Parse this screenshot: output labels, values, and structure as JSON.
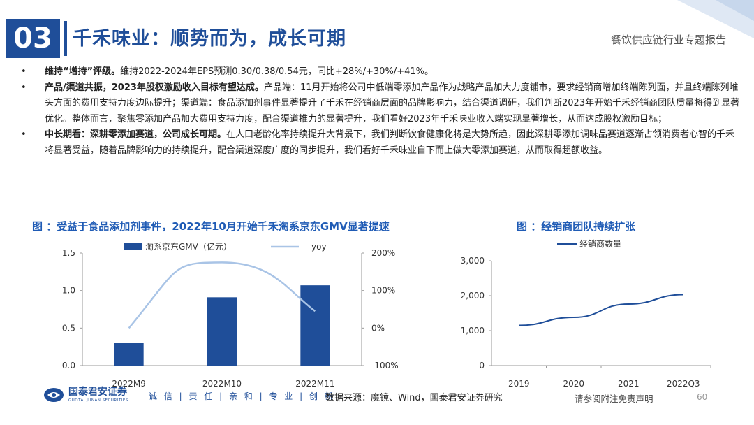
{
  "header": {
    "section_number": "03",
    "title": "千禾味业：顺势而为，成长可期",
    "report_tag": "餐饮供应链行业专题报告"
  },
  "bullets": [
    {
      "marker": "•",
      "bold": "维持“增持”评级。",
      "text": "维持2022-2024年EPS预测0.30/0.38/0.54元，同比+28%/+30%/+41%。"
    },
    {
      "marker": "•",
      "bold": "产品/渠道共振，2023年股权激励收入目标有望达成。",
      "text": "产品端：11月开始将公司中低端零添加产品作为战略产品加大力度铺市，要求经销商增加终端陈列面，并且终端陈列堆头方面的费用支持力度边际提升；渠道端：食品添加剂事件显著提升了千禾在经销商层面的品牌影响力，结合渠道调研，我们判断2023年开始千禾经销商团队质量将得到显著优化。整体而言，聚焦零添加产品加大费用支持力度，配合渠道推力的显著提升，我们看好2023年千禾味业收入端实现显著增长，从而达成股权激励目标；"
    },
    {
      "marker": "•",
      "bold": "中长期看：深耕零添加赛道，公司成长可期。",
      "text": "在人口老龄化率持续提升大背景下，我们判断饮食健康化将是大势所趋，因此深耕零添加调味品赛道逐渐占领消费者心智的千禾将显著受益，随着品牌影响力的持续提升，配合渠道深度广度的同步提升，我们看好千禾味业自下而上做大零添加赛道，从而取得超额收益。"
    }
  ],
  "colors": {
    "brand": "#1f4e99",
    "bar": "#1f4e99",
    "yoy_line": "#a9c4e6",
    "dealer_line": "#1f4e99",
    "chart_title": "#1f5bb5"
  },
  "chart_data": [
    {
      "type": "bar",
      "title": "图 ：受益于食品添加剂事件，2022年10月开始千禾淘系京东GMV显著提速",
      "categories": [
        "2022M9",
        "2022M10",
        "2022M11"
      ],
      "series": [
        {
          "name": "淘系京东GMV（亿元）",
          "type": "bar",
          "axis": "left",
          "values": [
            0.3,
            0.91,
            1.07
          ]
        },
        {
          "name": "yoy",
          "type": "line",
          "axis": "right",
          "values": [
            0,
            175,
            45
          ]
        }
      ],
      "y_left": {
        "range": [
          0,
          1.5
        ],
        "ticks": [
          "0.0",
          "0.5",
          "1.0",
          "1.5"
        ],
        "tick_values": [
          0,
          0.5,
          1.0,
          1.5
        ]
      },
      "y_right": {
        "range": [
          -100,
          200
        ],
        "ticks": [
          "-100%",
          "0%",
          "100%",
          "200%"
        ],
        "tick_values": [
          -100,
          0,
          100,
          200
        ]
      },
      "legend": "top"
    },
    {
      "type": "line",
      "title": "图 ：经销商团队持续扩张",
      "categories": [
        "2019",
        "2020",
        "2021",
        "2022Q3"
      ],
      "series": [
        {
          "name": "经销商数量",
          "values": [
            1150,
            1380,
            1760,
            2030
          ]
        }
      ],
      "y": {
        "range": [
          0,
          3000
        ],
        "ticks": [
          "0",
          "1,000",
          "2,000",
          "3,000"
        ],
        "tick_values": [
          0,
          1000,
          2000,
          3000
        ]
      },
      "legend": "top-left"
    }
  ],
  "footer": {
    "logo_cn": "国泰君安证券",
    "logo_en": "GUOTAI JUNAN SECURITIES",
    "slogan": "诚 信 | 责 任 | 亲 和 | 专 业 | 创 新",
    "source": "数据来源：魔镜、Wind，国泰君安证券研究",
    "disclaimer": "请参阅附注免责声明",
    "page_number": "60"
  }
}
